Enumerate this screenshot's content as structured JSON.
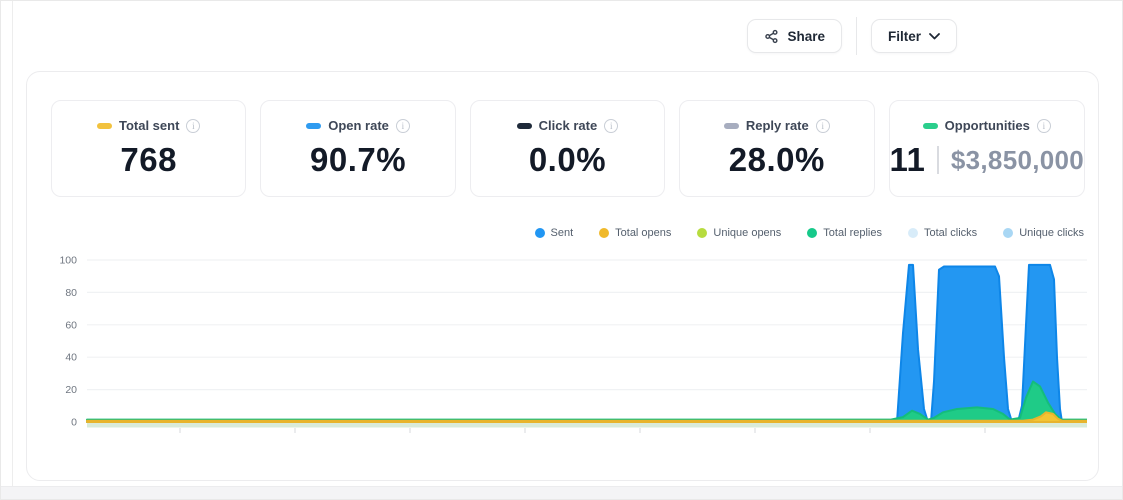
{
  "page": {
    "background_color": "#ffffff",
    "footer_strip_color": "#f4f4f6"
  },
  "toolbar": {
    "share_label": "Share",
    "filter_label": "Filter"
  },
  "stats": [
    {
      "label": "Total sent",
      "value": "768",
      "pill_color": "#F2C23E"
    },
    {
      "label": "Open rate",
      "value": "90.7%",
      "pill_color": "#2F9BF0"
    },
    {
      "label": "Click rate",
      "value": "0.0%",
      "pill_color": "#1F2A3A"
    },
    {
      "label": "Reply rate",
      "value": "28.0%",
      "pill_color": "#A7ADBF"
    },
    {
      "label": "Opportunities",
      "value": "11",
      "secondary_value": "$3,850,000",
      "pill_color": "#2BCE8C"
    }
  ],
  "chart_data": {
    "type": "area",
    "title": "",
    "xlabel": "",
    "ylabel": "",
    "x_axis": {
      "labels_visible": false,
      "tick_positions_pct": [
        9.3,
        20.8,
        32.3,
        43.8,
        55.3,
        66.8,
        78.3,
        89.8
      ]
    },
    "y_axis": {
      "ticks": [
        100,
        80,
        60,
        40,
        20,
        0
      ],
      "range": [
        0,
        100
      ],
      "grid": true,
      "grid_color": "#f0f2f4",
      "tick_label_color": "#6f7680"
    },
    "baseline_band_color": "#d9ebd9",
    "legend_position": "top-right",
    "legend": [
      {
        "label": "Sent",
        "color": "#2196F3"
      },
      {
        "label": "Total opens",
        "color": "#F0B92B"
      },
      {
        "label": "Unique opens",
        "color": "#B7DC3F"
      },
      {
        "label": "Total replies",
        "color": "#16C98A"
      },
      {
        "label": "Total clicks",
        "color": "#D8ECF9"
      },
      {
        "label": "Unique clicks",
        "color": "#A9D7F4"
      }
    ],
    "series": [
      {
        "name": "Sent",
        "fill": "#2397F2",
        "stroke": "#0E86E8",
        "points_pct": [
          [
            0,
            0
          ],
          [
            80.4,
            0
          ],
          [
            81.0,
            0
          ],
          [
            81.6,
            55
          ],
          [
            82.2,
            97
          ],
          [
            82.6,
            97
          ],
          [
            83.1,
            45
          ],
          [
            83.7,
            8
          ],
          [
            84.1,
            0
          ],
          [
            84.4,
            0
          ],
          [
            84.7,
            25
          ],
          [
            85.2,
            94
          ],
          [
            85.7,
            96
          ],
          [
            90.8,
            96
          ],
          [
            91.2,
            90
          ],
          [
            91.7,
            40
          ],
          [
            92.1,
            8
          ],
          [
            92.5,
            0
          ],
          [
            93.1,
            0
          ],
          [
            93.5,
            10
          ],
          [
            93.9,
            60
          ],
          [
            94.2,
            97
          ],
          [
            96.3,
            97
          ],
          [
            96.7,
            88
          ],
          [
            97.0,
            40
          ],
          [
            97.3,
            8
          ],
          [
            97.5,
            0
          ],
          [
            100,
            0
          ]
        ]
      },
      {
        "name": "Total replies",
        "fill": "#1FCB87",
        "stroke": "#14BD7B",
        "points_pct": [
          [
            0,
            1.5
          ],
          [
            80.4,
            1.5
          ],
          [
            81.6,
            3
          ],
          [
            82.5,
            7
          ],
          [
            83.3,
            5
          ],
          [
            84.1,
            1.5
          ],
          [
            84.7,
            2.5
          ],
          [
            85.6,
            6
          ],
          [
            87.0,
            8
          ],
          [
            89.0,
            9
          ],
          [
            90.6,
            8
          ],
          [
            91.6,
            5
          ],
          [
            92.3,
            1.5
          ],
          [
            93.3,
            2.5
          ],
          [
            93.9,
            15
          ],
          [
            94.6,
            25
          ],
          [
            95.3,
            22
          ],
          [
            96.1,
            12
          ],
          [
            96.8,
            5
          ],
          [
            97.4,
            1.5
          ],
          [
            100,
            1.5
          ]
        ]
      },
      {
        "name": "Total opens",
        "fill": "#F2C433",
        "stroke": "#E8B42C",
        "points_pct": [
          [
            0,
            0.8
          ],
          [
            93.6,
            0.8
          ],
          [
            94.6,
            1.5
          ],
          [
            95.4,
            3.5
          ],
          [
            95.9,
            6
          ],
          [
            96.6,
            5
          ],
          [
            97.1,
            2
          ],
          [
            97.5,
            0.8
          ],
          [
            100,
            0.8
          ]
        ]
      }
    ]
  }
}
